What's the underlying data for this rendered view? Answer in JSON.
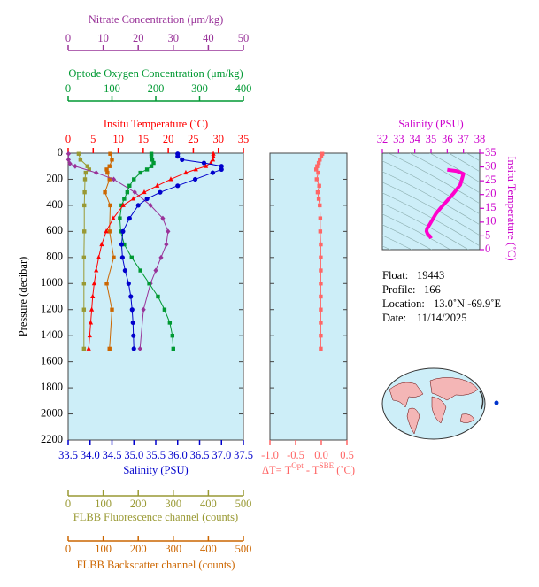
{
  "chart_data": [
    {
      "type": "profile",
      "ylabel": "Pressure (decibar)",
      "ylim": [
        0,
        2200
      ],
      "yticks": [
        0,
        200,
        400,
        600,
        800,
        1000,
        1200,
        1400,
        1600,
        1800,
        2000,
        2200
      ],
      "axes": [
        {
          "label": "Nitrate Concentration (μm/kg)",
          "color": "#993399",
          "lim": [
            0,
            50
          ],
          "ticks": [
            0,
            10,
            20,
            30,
            40,
            50
          ]
        },
        {
          "label": "Optode Oxygen Concentration (μm/kg)",
          "color": "#009933",
          "lim": [
            0,
            400
          ],
          "ticks": [
            0,
            100,
            200,
            300,
            400
          ]
        },
        {
          "label": "Insitu Temperature (˚C)",
          "color": "#ff0000",
          "lim": [
            0,
            35
          ],
          "ticks": [
            0,
            5,
            10,
            15,
            20,
            25,
            30,
            35
          ]
        },
        {
          "label": "Salinity (PSU)",
          "color": "#0000cc",
          "lim": [
            33.5,
            37.5
          ],
          "ticks": [
            33.5,
            {
              "value": 34,
              "label": "34.0"
            },
            34.5,
            {
              "value": 35,
              "label": "35.0"
            },
            35.5,
            {
              "value": 36,
              "label": "36.0"
            },
            36.5,
            {
              "value": 37,
              "label": "37.0"
            },
            37.5
          ]
        },
        {
          "label": "FLBB Fluorescence channel (counts)",
          "color": "#999933",
          "lim": [
            0,
            500
          ],
          "ticks": [
            0,
            100,
            200,
            300,
            400,
            500
          ]
        },
        {
          "label": "FLBB Backscatter channel (counts)",
          "color": "#cc6600",
          "lim": [
            0,
            500
          ],
          "ticks": [
            0,
            100,
            200,
            300,
            400,
            500
          ]
        }
      ],
      "series": [
        {
          "axis": 4,
          "marker": "square",
          "pressure": [
            5,
            50,
            100,
            125,
            150,
            200,
            300,
            400,
            600,
            800,
            1000,
            1200,
            1500
          ],
          "values": [
            30,
            35,
            55,
            60,
            50,
            48,
            47,
            46,
            46,
            45,
            45,
            45,
            45
          ]
        },
        {
          "axis": 5,
          "marker": "square",
          "pressure": [
            5,
            50,
            100,
            125,
            150,
            200,
            300,
            400,
            600,
            800,
            1000,
            1200,
            1500
          ],
          "values": [
            120,
            125,
            118,
            110,
            112,
            118,
            105,
            120,
            118,
            130,
            110,
            125,
            118
          ]
        },
        {
          "axis": 0,
          "marker": "diamond",
          "pressure": [
            5,
            50,
            80,
            100,
            150,
            200,
            300,
            400,
            500,
            600,
            700,
            800,
            900,
            1000,
            1200,
            1500
          ],
          "values": [
            0.1,
            0.1,
            0.5,
            2,
            8,
            13,
            19,
            23.5,
            27,
            28.5,
            28,
            26.5,
            25,
            23.5,
            21.5,
            20.5
          ]
        },
        {
          "axis": 1,
          "marker": "square",
          "pressure": [
            5,
            25,
            50,
            75,
            100,
            125,
            150,
            200,
            250,
            300,
            350,
            400,
            500,
            600,
            700,
            800,
            900,
            1000,
            1100,
            1200,
            1300,
            1400,
            1500
          ],
          "values": [
            190,
            190,
            192,
            195,
            190,
            180,
            165,
            150,
            140,
            135,
            128,
            122,
            118,
            120,
            128,
            145,
            165,
            185,
            205,
            220,
            232,
            238,
            240
          ]
        },
        {
          "axis": 2,
          "marker": "triangle",
          "pressure": [
            5,
            25,
            50,
            75,
            100,
            125,
            150,
            200,
            250,
            300,
            350,
            400,
            500,
            600,
            700,
            800,
            900,
            1000,
            1100,
            1200,
            1300,
            1400,
            1500
          ],
          "values": [
            29.0,
            29.0,
            28.9,
            28.5,
            27.5,
            25.5,
            23.5,
            20.5,
            17.8,
            15.2,
            13.0,
            11.0,
            9.0,
            7.6,
            6.7,
            6.1,
            5.6,
            5.2,
            4.9,
            4.7,
            4.5,
            4.3,
            4.1
          ]
        },
        {
          "axis": 3,
          "marker": "circle",
          "pressure": [
            5,
            25,
            50,
            75,
            100,
            125,
            150,
            200,
            250,
            300,
            350,
            400,
            500,
            600,
            700,
            800,
            900,
            1000,
            1100,
            1200,
            1300,
            1400,
            1500
          ],
          "values": [
            36.0,
            36.0,
            36.1,
            36.6,
            37.0,
            37.0,
            36.8,
            36.4,
            36.0,
            35.6,
            35.3,
            35.1,
            34.9,
            34.75,
            34.72,
            34.74,
            34.8,
            34.88,
            34.93,
            34.96,
            34.98,
            34.99,
            35.0
          ]
        }
      ]
    },
    {
      "type": "profile",
      "ylim": [
        0,
        2200
      ],
      "yticks": [
        0,
        200,
        400,
        600,
        800,
        1000,
        1200,
        1400,
        1600,
        1800,
        2000,
        2200
      ],
      "axes": [
        {
          "label_parts": [
            "ΔT= T",
            "Opt",
            " - T",
            "SBE",
            " (˚C)"
          ],
          "color": "#ff6666",
          "lim": [
            -1,
            0.5
          ],
          "ticks": [
            {
              "value": -1,
              "label": "-1.0"
            },
            -0.5,
            {
              "value": 0,
              "label": "0.0"
            },
            0.5
          ]
        }
      ],
      "series": [
        {
          "axis": 0,
          "marker": "square",
          "pressure": [
            5,
            25,
            50,
            75,
            100,
            125,
            150,
            200,
            250,
            300,
            350,
            400,
            500,
            600,
            700,
            800,
            900,
            1000,
            1100,
            1200,
            1300,
            1400,
            1500
          ],
          "values": [
            0.02,
            0.0,
            -0.03,
            -0.05,
            -0.08,
            -0.1,
            -0.06,
            -0.09,
            -0.04,
            -0.07,
            -0.05,
            -0.03,
            -0.02,
            -0.02,
            -0.01,
            -0.01,
            -0.01,
            -0.01,
            -0.01,
            -0.01,
            -0.01,
            -0.01,
            -0.01
          ]
        }
      ]
    },
    {
      "type": "ts",
      "color": "#ff00cc",
      "axis_color": "#cc00cc",
      "xlabel": "Salinity (PSU)",
      "ylabel": "Insitu Temperature (˚C)",
      "xlim": [
        32,
        38
      ],
      "xticks": [
        32,
        33,
        34,
        35,
        36,
        37,
        38
      ],
      "ylim": [
        0,
        35
      ],
      "yticks": [
        0,
        5,
        10,
        15,
        20,
        25,
        30,
        35
      ],
      "x": [
        36.0,
        36.1,
        36.6,
        37.0,
        36.8,
        36.4,
        36.0,
        35.6,
        35.3,
        35.1,
        34.9,
        34.75,
        34.72,
        34.8,
        34.93,
        35.0
      ],
      "values": [
        29.0,
        28.9,
        28.5,
        27.5,
        23.5,
        20.5,
        17.8,
        15.2,
        13.0,
        11.0,
        9.0,
        7.6,
        6.7,
        5.6,
        4.9,
        4.1
      ]
    }
  ],
  "info": [
    {
      "label": "Float:",
      "value": "19443"
    },
    {
      "label": "Profile:",
      "value": "166"
    },
    {
      "label": "Location:",
      "value": "13.0˚N  -69.9˚E"
    },
    {
      "label": "Date:",
      "value": "11/14/2025"
    }
  ]
}
